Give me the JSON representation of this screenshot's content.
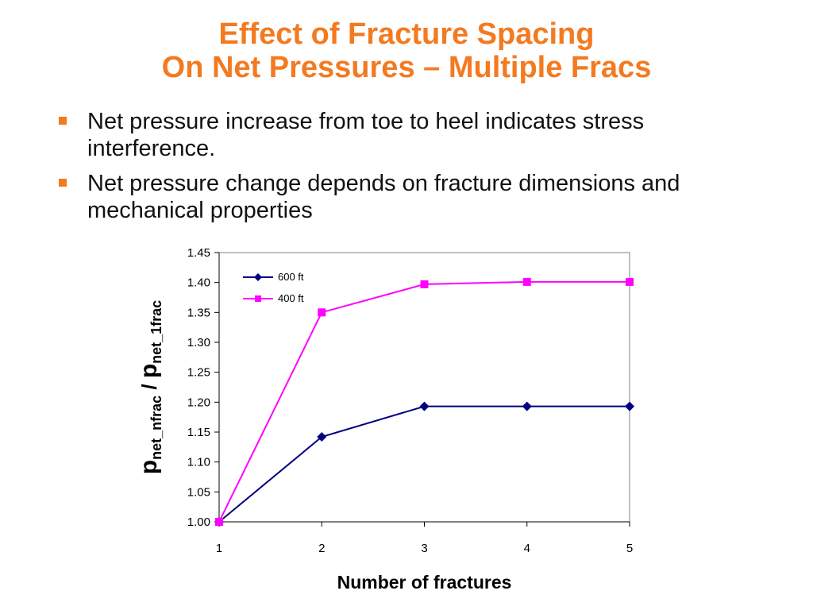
{
  "slide": {
    "title_line1": "Effect of Fracture Spacing",
    "title_line2": "On Net Pressures – Multiple Fracs",
    "bullets": [
      "Net pressure increase from toe to heel indicates stress interference.",
      "Net pressure change depends on fracture dimensions and mechanical properties"
    ],
    "accent_color": "#f47a20"
  },
  "chart_data": {
    "type": "line",
    "x": [
      1,
      2,
      3,
      4,
      5
    ],
    "series": [
      {
        "name": "600 ft",
        "values": [
          1.0,
          1.142,
          1.193,
          1.193,
          1.193
        ],
        "color": "#000080",
        "marker": "diamond"
      },
      {
        "name": "400 ft",
        "values": [
          1.0,
          1.35,
          1.397,
          1.401,
          1.401
        ],
        "color": "#ff00ff",
        "marker": "square"
      }
    ],
    "xlabel": "Number of fractures",
    "ylabel": {
      "p1": "p",
      "sub1": "net_nfrac",
      "sep": " / ",
      "p2": "p",
      "sub2": "net_1frac"
    },
    "yticks": [
      "1.00",
      "1.05",
      "1.10",
      "1.15",
      "1.20",
      "1.25",
      "1.30",
      "1.35",
      "1.40",
      "1.45"
    ],
    "xticks": [
      "1",
      "2",
      "3",
      "4",
      "5"
    ],
    "ylim": [
      1.0,
      1.45
    ],
    "xlim": [
      1,
      5
    ],
    "grid": false,
    "legend": "top-left"
  }
}
